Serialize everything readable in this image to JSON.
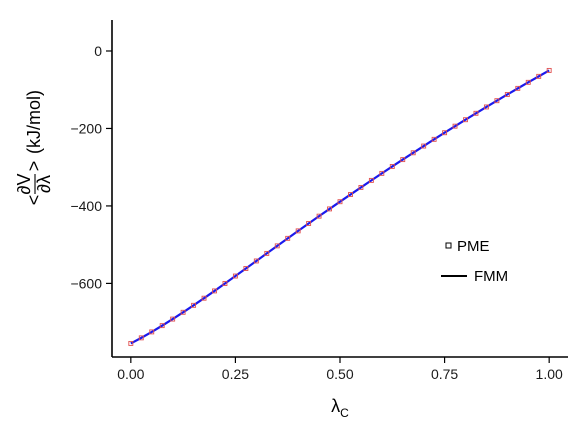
{
  "chart_data": {
    "type": "line",
    "xlabel": {
      "main": "λ",
      "sub": "C"
    },
    "ylabel": {
      "numerator": "∂V",
      "denominator": "∂λ",
      "open": "<",
      "close": ">",
      "unit": "(kJ/mol)"
    },
    "xlim": [
      -0.045,
      1.045
    ],
    "ylim": [
      -790,
      80
    ],
    "x_ticks": [
      0.0,
      0.25,
      0.5,
      0.75,
      1.0
    ],
    "x_tick_labels": [
      "0.00",
      "0.25",
      "0.50",
      "0.75",
      "1.00"
    ],
    "y_ticks": [
      0,
      -200,
      -400,
      -600
    ],
    "y_tick_labels": [
      "0",
      "−200",
      "−400",
      "−600"
    ],
    "grid": false,
    "legend_position": "right",
    "series": [
      {
        "name": "PME",
        "style": "square-markers",
        "color": "#e05050",
        "x": [
          0.0,
          0.025,
          0.05,
          0.075,
          0.1,
          0.125,
          0.15,
          0.175,
          0.2,
          0.225,
          0.25,
          0.275,
          0.3,
          0.325,
          0.35,
          0.375,
          0.4,
          0.425,
          0.45,
          0.475,
          0.5,
          0.525,
          0.55,
          0.575,
          0.6,
          0.625,
          0.65,
          0.675,
          0.7,
          0.725,
          0.75,
          0.775,
          0.8,
          0.825,
          0.85,
          0.875,
          0.9,
          0.925,
          0.95,
          0.975,
          1.0
        ],
        "y": [
          -755.0,
          -740.6,
          -725.2,
          -709.0,
          -692.1,
          -674.6,
          -656.6,
          -638.2,
          -619.4,
          -600.3,
          -581.0,
          -561.6,
          -542.1,
          -522.6,
          -503.1,
          -483.7,
          -464.4,
          -445.3,
          -426.4,
          -407.7,
          -389.1,
          -370.6,
          -352.3,
          -334.1,
          -316.0,
          -298.1,
          -280.4,
          -262.8,
          -245.4,
          -228.1,
          -211.0,
          -194.1,
          -177.4,
          -160.9,
          -144.5,
          -128.3,
          -112.3,
          -96.5,
          -80.9,
          -65.5,
          -50.2
        ]
      },
      {
        "name": "FMM",
        "style": "line",
        "color": "#1a1aee",
        "x": [
          0.0,
          0.025,
          0.05,
          0.075,
          0.1,
          0.125,
          0.15,
          0.175,
          0.2,
          0.225,
          0.25,
          0.275,
          0.3,
          0.325,
          0.35,
          0.375,
          0.4,
          0.425,
          0.45,
          0.475,
          0.5,
          0.525,
          0.55,
          0.575,
          0.6,
          0.625,
          0.65,
          0.675,
          0.7,
          0.725,
          0.75,
          0.775,
          0.8,
          0.825,
          0.85,
          0.875,
          0.9,
          0.925,
          0.95,
          0.975,
          1.0
        ],
        "y": [
          -755.0,
          -740.6,
          -725.2,
          -709.0,
          -692.1,
          -674.6,
          -656.6,
          -638.2,
          -619.4,
          -600.3,
          -581.0,
          -561.6,
          -542.1,
          -522.6,
          -503.1,
          -483.7,
          -464.4,
          -445.3,
          -426.4,
          -407.7,
          -389.1,
          -370.6,
          -352.3,
          -334.1,
          -316.0,
          -298.1,
          -280.4,
          -262.8,
          -245.4,
          -228.1,
          -211.0,
          -194.1,
          -177.4,
          -160.9,
          -144.5,
          -128.3,
          -112.3,
          -96.5,
          -80.9,
          -65.5,
          -50.2
        ]
      }
    ]
  }
}
